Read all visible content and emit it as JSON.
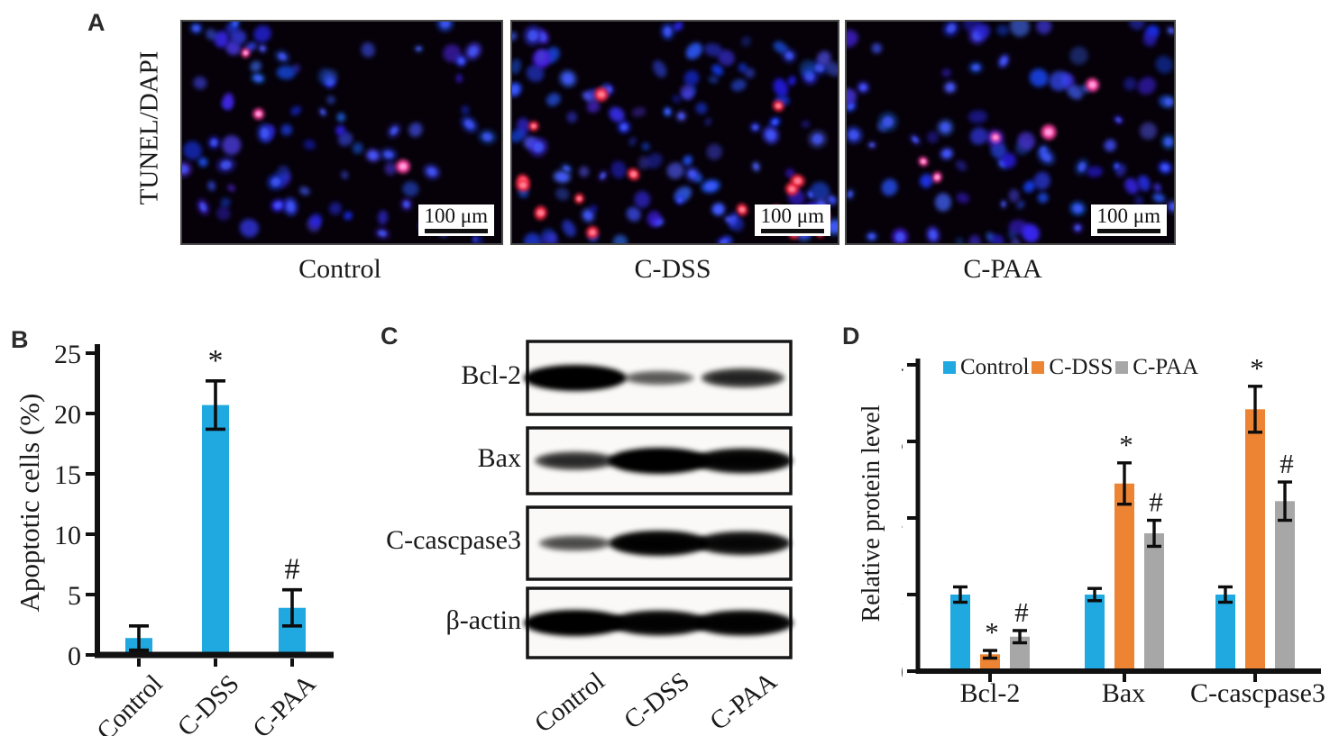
{
  "figure": {
    "background": "#ffffff"
  },
  "panelA": {
    "label": "A",
    "row_label": "TUNEL/DAPI",
    "scale_bar_label": "100 μm",
    "images": [
      {
        "caption": "Control",
        "blue_cells": 80,
        "red_cells": 3,
        "red_color": "#ff46a6",
        "red_core": "#ff9ed8",
        "seed": 11
      },
      {
        "caption": "C-DSS",
        "blue_cells": 115,
        "red_cells": 17,
        "red_color": "#ff2d49",
        "red_core": "#ff7e92",
        "seed": 23
      },
      {
        "caption": "C-PAA",
        "blue_cells": 90,
        "red_cells": 5,
        "red_color": "#ff46a6",
        "red_core": "#ff9ed8",
        "seed": 37
      }
    ]
  },
  "panelB": {
    "label": "B"
  },
  "panelC": {
    "label": "C",
    "lanes": [
      "Control",
      "C-DSS",
      "C-PAA"
    ],
    "rows": [
      {
        "label": "Bcl-2",
        "bands": [
          1.0,
          0.32,
          0.6
        ]
      },
      {
        "label": "Bax",
        "bands": [
          0.55,
          1.0,
          0.92
        ]
      },
      {
        "label": "C-cascpase3",
        "bands": [
          0.38,
          0.95,
          0.85
        ]
      },
      {
        "label": "β-actin",
        "bands": [
          1.0,
          0.93,
          0.95
        ]
      }
    ]
  },
  "panelD": {
    "label": "D"
  },
  "chart_data": [
    {
      "type": "bar",
      "panel": "B",
      "title": "",
      "categories": [
        "Control",
        "C-DSS",
        "C-PAA"
      ],
      "values": [
        1.4,
        20.7,
        3.9
      ],
      "errors": [
        1.0,
        2.0,
        1.5
      ],
      "annotations": [
        "",
        "*",
        "#"
      ],
      "xlabel": "",
      "ylabel": "Apoptotic cells (%)",
      "ylim": [
        0,
        25
      ],
      "yticks": [
        0,
        5,
        10,
        15,
        20,
        25
      ],
      "bar_color": "#1FA9E0",
      "grid": false,
      "legend": false
    },
    {
      "type": "grouped-bar",
      "panel": "D",
      "title": "",
      "categories": [
        "Bcl-2",
        "Bax",
        "C-cascpase3"
      ],
      "series": [
        {
          "name": "Control",
          "color": "#1FA9E0",
          "values": [
            1.0,
            1.0,
            1.0
          ],
          "errors": [
            0.1,
            0.08,
            0.1
          ],
          "annotations": [
            "",
            "",
            ""
          ]
        },
        {
          "name": "C-DSS",
          "color": "#EC8433",
          "values": [
            0.22,
            2.45,
            3.42
          ],
          "errors": [
            0.05,
            0.27,
            0.3
          ],
          "annotations": [
            "*",
            "*",
            "*"
          ]
        },
        {
          "name": "C-PAA",
          "color": "#A7A7A7",
          "values": [
            0.45,
            1.8,
            2.22
          ],
          "errors": [
            0.08,
            0.17,
            0.25
          ],
          "annotations": [
            "#",
            "#",
            "#"
          ]
        }
      ],
      "xlabel": "",
      "ylabel": "Relative protein level",
      "ylim": [
        0,
        4
      ],
      "yticks": [
        0,
        1,
        2,
        3,
        4
      ],
      "grid": false,
      "legend_position": "top"
    }
  ]
}
